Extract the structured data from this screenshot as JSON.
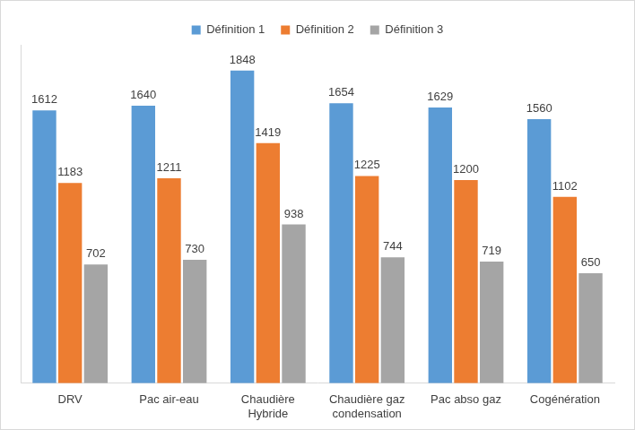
{
  "chart_data": {
    "type": "bar",
    "categories": [
      "DRV",
      "Pac air-eau",
      "Chaudière Hybride",
      "Chaudière gaz condensation",
      "Pac abso gaz",
      "Cogénération"
    ],
    "series": [
      {
        "name": "Définition 1",
        "color": "#5b9bd5",
        "values": [
          1612,
          1640,
          1848,
          1654,
          1629,
          1560
        ]
      },
      {
        "name": "Définition 2",
        "color": "#ed7d31",
        "values": [
          1183,
          1211,
          1419,
          1225,
          1200,
          1102
        ]
      },
      {
        "name": "Définition 3",
        "color": "#a5a5a5",
        "values": [
          702,
          730,
          938,
          744,
          719,
          650
        ]
      }
    ],
    "ylim": [
      0,
      2000
    ],
    "grid": false,
    "legend": "top",
    "data_labels": true,
    "tick_labels": "x"
  }
}
